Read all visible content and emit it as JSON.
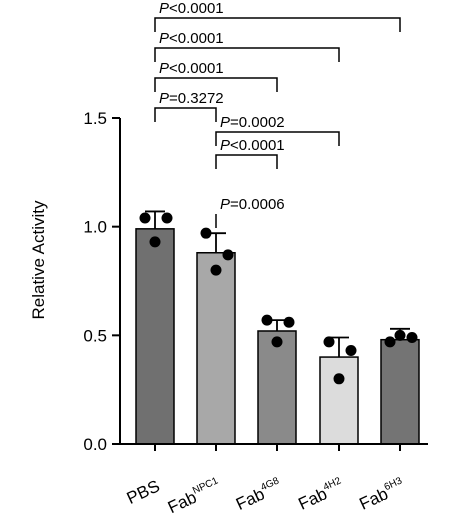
{
  "chart_data": {
    "type": "bar",
    "title": "",
    "xlabel": "",
    "ylabel": "Relative Activity",
    "ylim": [
      0,
      1.5
    ],
    "yticks": [
      "0.0",
      "0.5",
      "1.0",
      "1.5"
    ],
    "grid": false,
    "categories": [
      {
        "base": "PBS",
        "sup": ""
      },
      {
        "base": "Fab",
        "sup": "NPC1"
      },
      {
        "base": "Fab",
        "sup": "4G8"
      },
      {
        "base": "Fab",
        "sup": "4H2"
      },
      {
        "base": "Fab",
        "sup": "6H3"
      }
    ],
    "values": [
      0.99,
      0.88,
      0.52,
      0.4,
      0.48
    ],
    "error": [
      0.08,
      0.09,
      0.05,
      0.09,
      0.05
    ],
    "points": [
      [
        1.04,
        0.93,
        1.04
      ],
      [
        0.97,
        0.8,
        0.87
      ],
      [
        0.57,
        0.47,
        0.56
      ],
      [
        0.47,
        0.3,
        0.43
      ],
      [
        0.47,
        0.5,
        0.49
      ]
    ],
    "bar_colors": [
      "#707070",
      "#a8a8a8",
      "#8a8a8a",
      "#dcdcdc",
      "#747474"
    ],
    "comparisons": [
      {
        "from": 0,
        "to": 2,
        "label": "P=0.3272",
        "group": "PBS"
      },
      {
        "from": 0,
        "to": 3,
        "label": "P<0.0001",
        "group": "PBS"
      },
      {
        "from": 0,
        "to": 4,
        "label": "P<0.0001",
        "group": "PBS"
      },
      {
        "from": 0,
        "to": 5,
        "label": "P<0.0001",
        "group": "PBS"
      },
      {
        "from": 1,
        "to": 2,
        "label": "P=0.0006",
        "group": "NPC1"
      },
      {
        "from": 1,
        "to": 3,
        "label": "P<0.0001",
        "group": "NPC1"
      },
      {
        "from": 1,
        "to": 4,
        "label": "P=0.0002",
        "group": "NPC1"
      }
    ]
  }
}
